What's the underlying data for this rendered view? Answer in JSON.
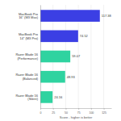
{
  "chart_data": {
    "type": "bar",
    "orientation": "horizontal",
    "categories": [
      "MacBook Pro 16\" (M3 Max)",
      "MacBook Pro 14\" (M3 Pro)",
      "Razer Blade 16 (Performance)",
      "Razer Blade 16 (Balanced)",
      "Razer Blade 16 (Silent)"
    ],
    "values": [
      117.38,
      74.52,
      59.07,
      48.93,
      24.16
    ],
    "colors": [
      "#3b3fe4",
      "#3b3fe4",
      "#2fd3a0",
      "#2fd3a0",
      "#2fd3a0"
    ],
    "xlim": [
      0,
      140
    ],
    "xticks": [
      0,
      25,
      50,
      75,
      100,
      125
    ],
    "xlabel": "Score - higher is better",
    "data_labels": true,
    "grid": true
  }
}
